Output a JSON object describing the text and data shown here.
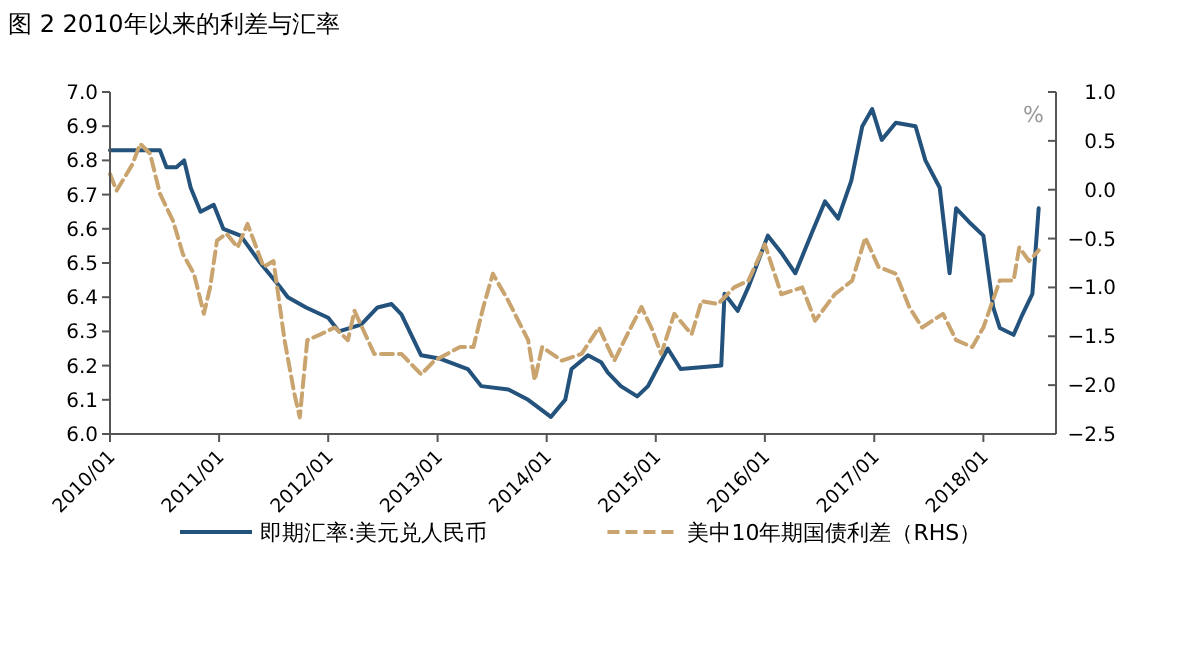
{
  "chart_data": {
    "type": "line",
    "title": "图 2    2010年以来的利差与汇率",
    "y2label": "%",
    "xlim": [
      "2010-01",
      "2018-09"
    ],
    "xticks": [
      {
        "value": "2010-01",
        "label": "2010/01"
      },
      {
        "value": "2011-01",
        "label": "2011/01"
      },
      {
        "value": "2012-01",
        "label": "2012/01"
      },
      {
        "value": "2013-01",
        "label": "2013/01"
      },
      {
        "value": "2014-01",
        "label": "2014/01"
      },
      {
        "value": "2015-01",
        "label": "2015/01"
      },
      {
        "value": "2016-01",
        "label": "2016/01"
      },
      {
        "value": "2017-01",
        "label": "2017/01"
      },
      {
        "value": "2018-01",
        "label": "2018/01"
      }
    ],
    "ylim": [
      6.0,
      7.0
    ],
    "yticks": [
      {
        "value": 6.0,
        "label": "6.0"
      },
      6.1,
      6.2,
      6.3,
      6.4,
      6.5,
      6.6,
      6.7,
      6.8,
      6.9,
      {
        "value": 7.0,
        "label": "7.0"
      }
    ],
    "y2lim": [
      -2.5,
      1.0
    ],
    "y2ticks": [
      {
        "value": -2.5,
        "label": "−2.5"
      },
      {
        "value": -2.0,
        "label": "−2.0"
      },
      {
        "value": -1.5,
        "label": "−1.5"
      },
      {
        "value": -1.0,
        "label": "−1.0"
      },
      {
        "value": -0.5,
        "label": "−0.5"
      },
      {
        "value": 0.0,
        "label": "0.0"
      },
      0.5,
      {
        "value": 1.0,
        "label": "1.0"
      }
    ],
    "grid": false,
    "legend": "bottom",
    "marker": "none",
    "series": [
      {
        "name": "即期汇率:美元兑人民币",
        "color": "#23527c",
        "line_style": "solid",
        "x": [
          "2010-01-01",
          "2010-06-17",
          "2010-07-09",
          "2010-08-11",
          "2010-09-06",
          "2010-09-28",
          "2010-10-31",
          "2010-12-14",
          "2011-01-15",
          "2011-03-14",
          "2011-05-19",
          "2011-07-24",
          "2011-08-19",
          "2011-10-19",
          "2012-01-01",
          "2012-02-06",
          "2012-04-20",
          "2012-06-14",
          "2012-07-31",
          "2012-09-02",
          "2012-11-07",
          "2013-01-11",
          "2013-04-12",
          "2013-05-27",
          "2013-08-26",
          "2013-10-31",
          "2014-01-15",
          "2014-03-04",
          "2014-03-25",
          "2014-05-19",
          "2014-07-02",
          "2014-07-24",
          "2014-09-06",
          "2014-10-31",
          "2014-12-06",
          "2015-02-10",
          "2015-03-25",
          "2015-08-08",
          "2015-08-19",
          "2015-10-02",
          "2015-11-07",
          "2016-01-11",
          "2016-02-25",
          "2016-04-12",
          "2016-06-07",
          "2016-07-20",
          "2016-09-02",
          "2016-10-16",
          "2016-11-22",
          "2016-12-25",
          "2017-01-26",
          "2017-03-14",
          "2017-05-19",
          "2017-06-21",
          "2017-08-08",
          "2017-09-10",
          "2017-10-02",
          "2017-11-14",
          "2018-01-01",
          "2018-02-03",
          "2018-02-25",
          "2018-04-12",
          "2018-05-12",
          "2018-06-14",
          "2018-07-05"
        ],
        "values": [
          6.83,
          6.83,
          6.78,
          6.78,
          6.8,
          6.72,
          6.65,
          6.67,
          6.6,
          6.58,
          6.5,
          6.43,
          6.4,
          6.37,
          6.34,
          6.3,
          6.32,
          6.37,
          6.38,
          6.35,
          6.23,
          6.22,
          6.19,
          6.14,
          6.13,
          6.1,
          6.05,
          6.1,
          6.19,
          6.23,
          6.21,
          6.18,
          6.14,
          6.11,
          6.14,
          6.25,
          6.19,
          6.2,
          6.41,
          6.36,
          6.43,
          6.58,
          6.53,
          6.47,
          6.59,
          6.68,
          6.63,
          6.74,
          6.9,
          6.95,
          6.86,
          6.91,
          6.9,
          6.8,
          6.72,
          6.47,
          6.66,
          6.62,
          6.58,
          6.37,
          6.31,
          6.29,
          6.35,
          6.41,
          6.66
        ]
      },
      {
        "name": "美中10年期国债利差（RHS）",
        "color": "#c9a46e",
        "line_style": "dashed",
        "axis": "y2",
        "x": [
          "2010-01-01",
          "2010-01-23",
          "2010-03-17",
          "2010-04-12",
          "2010-05-15",
          "2010-06-17",
          "2010-07-31",
          "2010-09-02",
          "2010-10-09",
          "2010-11-11",
          "2010-12-02",
          "2010-12-25",
          "2011-01-26",
          "2011-03-04",
          "2011-04-06",
          "2011-05-30",
          "2011-07-02",
          "2011-08-08",
          "2011-09-10",
          "2011-09-28",
          "2011-10-23",
          "2011-12-06",
          "2012-01-23",
          "2012-03-07",
          "2012-03-29",
          "2012-06-03",
          "2012-09-02",
          "2012-11-07",
          "2012-12-21",
          "2013-03-17",
          "2013-05-01",
          "2013-06-03",
          "2013-07-05",
          "2013-08-26",
          "2013-10-31",
          "2013-11-22",
          "2013-12-17",
          "2014-02-21",
          "2014-04-28",
          "2014-06-25",
          "2014-08-15",
          "2014-09-28",
          "2014-11-14",
          "2014-12-17",
          "2015-01-19",
          "2015-03-04",
          "2015-05-01",
          "2015-06-03",
          "2015-07-28",
          "2015-09-20",
          "2015-11-07",
          "2016-01-01",
          "2016-02-25",
          "2016-05-05",
          "2016-06-17",
          "2016-08-22",
          "2016-10-19",
          "2016-12-02",
          "2017-01-15",
          "2017-03-14",
          "2017-04-28",
          "2017-06-10",
          "2017-08-19",
          "2017-10-02",
          "2017-11-25",
          "2018-01-01",
          "2018-02-25",
          "2018-04-12",
          "2018-05-01",
          "2018-06-03",
          "2018-07-05"
        ],
        "values": [
          0.16,
          -0.01,
          0.26,
          0.47,
          0.37,
          -0.04,
          -0.32,
          -0.66,
          -0.86,
          -1.27,
          -1.0,
          -0.52,
          -0.45,
          -0.59,
          -0.35,
          -0.79,
          -0.73,
          -1.54,
          -2.09,
          -2.33,
          -1.54,
          -1.48,
          -1.41,
          -1.54,
          -1.24,
          -1.68,
          -1.68,
          -1.89,
          -1.75,
          -1.61,
          -1.61,
          -1.2,
          -0.86,
          -1.14,
          -1.54,
          -1.95,
          -1.61,
          -1.75,
          -1.68,
          -1.41,
          -1.75,
          -1.48,
          -1.2,
          -1.41,
          -1.68,
          -1.27,
          -1.48,
          -1.14,
          -1.17,
          -1.0,
          -0.93,
          -0.56,
          -1.07,
          -1.0,
          -1.34,
          -1.07,
          -0.93,
          -0.49,
          -0.79,
          -0.86,
          -1.2,
          -1.41,
          -1.27,
          -1.54,
          -1.61,
          -1.41,
          -0.93,
          -0.93,
          -0.59,
          -0.73,
          -0.62
        ]
      }
    ]
  }
}
